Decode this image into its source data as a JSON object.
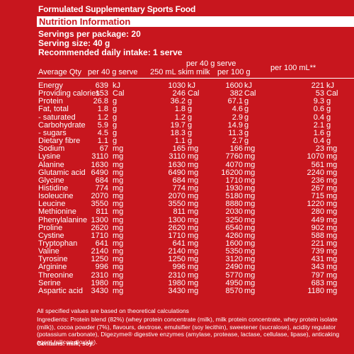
{
  "top_title": "Formulated Supplementary Sports Food",
  "header_bar": "Nutrition Information",
  "servings_line": "Servings per package: 20",
  "serving_size_line": "Serving size: 40 g",
  "intake_line": "Recommended daily intake: 1 serve",
  "columns": {
    "avg_qty": "Average Qty",
    "per40": "per 40 g serve",
    "per40milk_1": "per 40 g serve",
    "per40milk_2": "250 mL skim milk",
    "per100g": "per 100 g",
    "per100ml": "per 100 mL**"
  },
  "rows": [
    {
      "name": "Energy",
      "v1": "639",
      "u1": "kJ",
      "v2": "1030",
      "u2": "kJ",
      "v3": "1600",
      "u3": "kJ",
      "v4": "221",
      "u4": "kJ"
    },
    {
      "name": "Providing calories",
      "v1": "153",
      "u1": "Cal",
      "v2": "246",
      "u2": "Cal",
      "v3": "382",
      "u3": "Cal",
      "v4": "53",
      "u4": "Cal"
    },
    {
      "name": "Protein",
      "v1": "26.8",
      "u1": "g",
      "v2": "36.2",
      "u2": "g",
      "v3": "67.1",
      "u3": "g",
      "v4": "9.3",
      "u4": "g"
    },
    {
      "name": "Fat, total",
      "v1": "1.8",
      "u1": "g",
      "v2": "1.8",
      "u2": "g",
      "v3": "4.6",
      "u3": "g",
      "v4": "0.6",
      "u4": "g"
    },
    {
      "name": "- saturated",
      "v1": "1.2",
      "u1": "g",
      "v2": "1.2",
      "u2": "g",
      "v3": "2.9",
      "u3": "g",
      "v4": "0.4",
      "u4": "g"
    },
    {
      "name": "Carbohydrate",
      "v1": "5.9",
      "u1": "g",
      "v2": "19.7",
      "u2": "g",
      "v3": "14.9",
      "u3": "g",
      "v4": "2.1",
      "u4": "g"
    },
    {
      "name": "- sugars",
      "v1": "4.5",
      "u1": "g",
      "v2": "18.3",
      "u2": "g",
      "v3": "11.3",
      "u3": "g",
      "v4": "1.6",
      "u4": "g"
    },
    {
      "name": "Dietary fibre",
      "v1": "1.1",
      "u1": "g",
      "v2": "1.1",
      "u2": "g",
      "v3": "2.7",
      "u3": "g",
      "v4": "0.4",
      "u4": "g"
    },
    {
      "name": "Sodium",
      "v1": "67",
      "u1": "mg",
      "v2": "165",
      "u2": "mg",
      "v3": "166",
      "u3": "mg",
      "v4": "23",
      "u4": "mg"
    },
    {
      "name": "Lysine",
      "v1": "3110",
      "u1": "mg",
      "v2": "3110",
      "u2": "mg",
      "v3": "7760",
      "u3": "mg",
      "v4": "1070",
      "u4": "mg"
    },
    {
      "name": "Alanine",
      "v1": "1630",
      "u1": "mg",
      "v2": "1630",
      "u2": "mg",
      "v3": "4070",
      "u3": "mg",
      "v4": "561",
      "u4": "mg"
    },
    {
      "name": "Glutamic acid",
      "v1": "6490",
      "u1": "mg",
      "v2": "6490",
      "u2": "mg",
      "v3": "16200",
      "u3": "mg",
      "v4": "2240",
      "u4": "mg"
    },
    {
      "name": "Glycine",
      "v1": "684",
      "u1": "mg",
      "v2": "684",
      "u2": "mg",
      "v3": "1710",
      "u3": "mg",
      "v4": "236",
      "u4": "mg"
    },
    {
      "name": "Histidine",
      "v1": "774",
      "u1": "mg",
      "v2": "774",
      "u2": "mg",
      "v3": "1930",
      "u3": "mg",
      "v4": "267",
      "u4": "mg"
    },
    {
      "name": "Isoleucine",
      "v1": "2070",
      "u1": "mg",
      "v2": "2070",
      "u2": "mg",
      "v3": "5180",
      "u3": "mg",
      "v4": "715",
      "u4": "mg"
    },
    {
      "name": "Leucine",
      "v1": "3550",
      "u1": "mg",
      "v2": "3550",
      "u2": "mg",
      "v3": "8880",
      "u3": "mg",
      "v4": "1220",
      "u4": "mg"
    },
    {
      "name": "Methionine",
      "v1": "811",
      "u1": "mg",
      "v2": "811",
      "u2": "mg",
      "v3": "2030",
      "u3": "mg",
      "v4": "280",
      "u4": "mg"
    },
    {
      "name": "Phenylalanine",
      "v1": "1300",
      "u1": "mg",
      "v2": "1300",
      "u2": "mg",
      "v3": "3250",
      "u3": "mg",
      "v4": "449",
      "u4": "mg"
    },
    {
      "name": "Proline",
      "v1": "2620",
      "u1": "mg",
      "v2": "2620",
      "u2": "mg",
      "v3": "6540",
      "u3": "mg",
      "v4": "902",
      "u4": "mg"
    },
    {
      "name": "Cystine",
      "v1": "1710",
      "u1": "mg",
      "v2": "1710",
      "u2": "mg",
      "v3": "4260",
      "u3": "mg",
      "v4": "588",
      "u4": "mg"
    },
    {
      "name": "Tryptophan",
      "v1": "641",
      "u1": "mg",
      "v2": "641",
      "u2": "mg",
      "v3": "1600",
      "u3": "mg",
      "v4": "221",
      "u4": "mg"
    },
    {
      "name": "Valine",
      "v1": "2140",
      "u1": "mg",
      "v2": "2140",
      "u2": "mg",
      "v3": "5350",
      "u3": "mg",
      "v4": "739",
      "u4": "mg"
    },
    {
      "name": "Tyrosine",
      "v1": "1250",
      "u1": "mg",
      "v2": "1250",
      "u2": "mg",
      "v3": "3120",
      "u3": "mg",
      "v4": "431",
      "u4": "mg"
    },
    {
      "name": "Arginine",
      "v1": "996",
      "u1": "mg",
      "v2": "996",
      "u2": "mg",
      "v3": "2490",
      "u3": "mg",
      "v4": "343",
      "u4": "mg"
    },
    {
      "name": "Threonine",
      "v1": "2310",
      "u1": "mg",
      "v2": "2310",
      "u2": "mg",
      "v3": "5770",
      "u3": "mg",
      "v4": "797",
      "u4": "mg"
    },
    {
      "name": "Serine",
      "v1": "1980",
      "u1": "mg",
      "v2": "1980",
      "u2": "mg",
      "v3": "4950",
      "u3": "mg",
      "v4": "683",
      "u4": "mg"
    },
    {
      "name": "Aspartic acid",
      "v1": "3430",
      "u1": "mg",
      "v2": "3430",
      "u2": "mg",
      "v3": "8570",
      "u3": "mg",
      "v4": "1180",
      "u4": "mg"
    }
  ],
  "footnotes": {
    "theoretical": "All specified values are based on theoretical calculations",
    "ingredients": "Ingredients: Protein blend (82%) (whey protein concentrate (milk), milk protein concentrate, whey protein isolate (milk)), cocoa powder (7%), flavours, dextrose, emulsifier (soy lecithin), sweetener (sucralose), acidity regulator (potassium carbonate), Digezyme® digestive enzymes (amylase, protease, lactase, cellulase, lipase), anticaking agent (silicon dioxide).",
    "contains": "Contains: milk, soy."
  }
}
